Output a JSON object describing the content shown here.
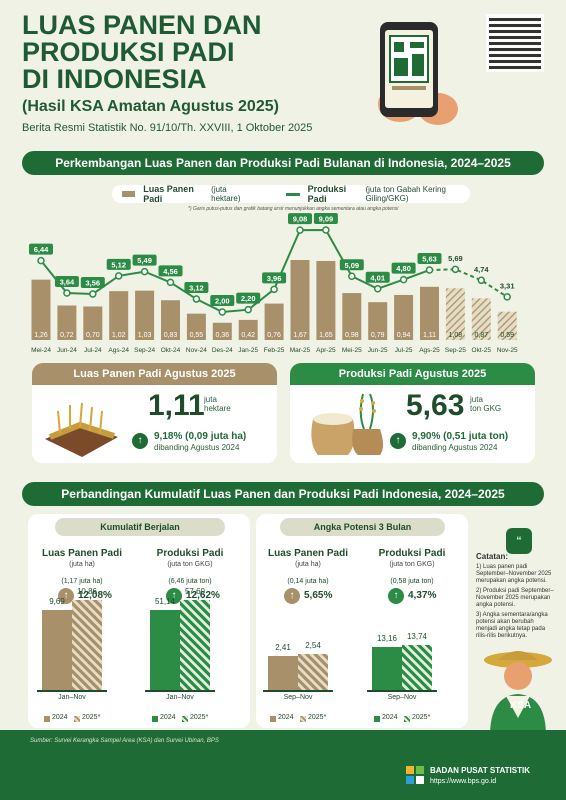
{
  "header": {
    "title_lines": [
      "LUAS PANEN DAN",
      "PRODUKSI PADI",
      "DI INDONESIA"
    ],
    "subtitle": "(Hasil KSA Amatan Agustus 2025)",
    "brs": "Berita Resmi Statistik No. 91/10/Th. XXVIII, 1 Oktober 2025"
  },
  "section1": {
    "banner": "Perkembangan Luas Panen dan Produksi Padi Bulanan di Indonesia, 2024–2025",
    "legend_area": "Luas Panen Padi",
    "legend_area_unit": "(juta hektare)",
    "legend_prod": "Produksi Padi",
    "legend_prod_unit": "(juta ton Gabah Kering Giling/GKG)",
    "note": "*) Garis putus-putus dan grafik batang arsir menunjukkan angka sementara atau angka potensi"
  },
  "chart_data": {
    "type": "bar",
    "categories": [
      "Mei-24",
      "Jun-24",
      "Jul-24",
      "Ags-24",
      "Sep-24",
      "Okt-24",
      "Nov-24",
      "Des-24",
      "Jan-25",
      "Feb-25",
      "Mar-25",
      "Apr-25",
      "Mei-25",
      "Jun-25",
      "Jul-25",
      "Ags-25",
      "Sep-25",
      "Okt-25",
      "Nov-25"
    ],
    "series": [
      {
        "name": "Luas Panen Padi",
        "values": [
          1.26,
          0.72,
          0.7,
          1.02,
          1.03,
          0.83,
          0.55,
          0.36,
          0.42,
          0.76,
          1.67,
          1.65,
          0.98,
          0.79,
          0.94,
          1.11,
          1.08,
          0.87,
          0.59
        ]
      },
      {
        "name": "Produksi Padi",
        "values": [
          6.44,
          3.64,
          3.56,
          5.12,
          5.49,
          4.56,
          3.12,
          2.0,
          2.2,
          3.96,
          9.08,
          9.09,
          5.09,
          4.01,
          4.8,
          5.63,
          5.69,
          4.74,
          3.31
        ]
      }
    ],
    "potential_from_index": 16,
    "colors": {
      "bar": "#a8916a",
      "line": "#2c8b45",
      "label_bg": "#2c8b45"
    }
  },
  "cards": {
    "area": {
      "header": "Luas Panen Padi Agustus 2025",
      "value": "1,11",
      "unit1": "juta",
      "unit2": "hektare",
      "pct": "9,18% (0,09 juta ha)",
      "cmp": "dibanding Agustus 2024",
      "color": "#a8916a"
    },
    "prod": {
      "header": "Produksi Padi Agustus 2025",
      "value": "5,63",
      "unit1": "juta",
      "unit2": "ton GKG",
      "pct": "9,90% (0,51 juta ton)",
      "cmp": "dibanding Agustus 2024",
      "color": "#2c8b45"
    }
  },
  "section2": {
    "banner": "Perbandingan Kumulatif Luas Panen dan Produksi Padi Indonesia, 2024–2025",
    "left": {
      "pill": "Kumulatif Berjalan",
      "area": {
        "title": "Luas Panen Padi",
        "unit": "(juta ha)",
        "delta": "(1,17 juta ha)",
        "pct": "12,08%",
        "v2024": "9,69",
        "v2025": "10,86",
        "n2024": 9.69,
        "n2025": 10.86,
        "period": "Jan–Nov"
      },
      "prod": {
        "title": "Produksi Padi",
        "unit": "(juta ton GKG)",
        "delta": "(6,46 juta ton)",
        "pct": "12,62%",
        "v2024": "51,14",
        "v2025": "57,60",
        "n2024": 51.14,
        "n2025": 57.6,
        "period": "Jan–Nov"
      }
    },
    "right": {
      "pill": "Angka Potensi 3 Bulan",
      "area": {
        "title": "Luas Panen Padi",
        "unit": "(juta ha)",
        "delta": "(0,14 juta ha)",
        "pct": "5,65%",
        "v2024": "2,41",
        "v2025": "2,54",
        "n2024": 2.41,
        "n2025": 2.54,
        "period": "Sep–Nov"
      },
      "prod": {
        "title": "Produksi Padi",
        "unit": "(juta ton GKG)",
        "delta": "(0,58 juta ton)",
        "pct": "4,37%",
        "v2024": "13,16",
        "v2025": "13,74",
        "n2024": 13.16,
        "n2025": 13.74,
        "period": "Sep–Nov"
      }
    },
    "legend_2024": "2024",
    "legend_2025": "2025*",
    "notes_title": "Catatan:",
    "notes": [
      "1) Luas panen padi September–November 2025 merupakan angka potensi.",
      "2) Produksi padi September–November 2025 merupakan angka potensi.",
      "3) Angka sementara/angka potensi akan berubah menjadi angka tetap pada rilis-rilis berikutnya."
    ]
  },
  "footer": {
    "source": "Sumber: Survei Kerangka Sampel Area (KSA) dan Survei Ubinan, BPS",
    "org": "BADAN PUSAT STATISTIK",
    "url": "https://www.bps.go.id",
    "mascot": "KSA"
  }
}
